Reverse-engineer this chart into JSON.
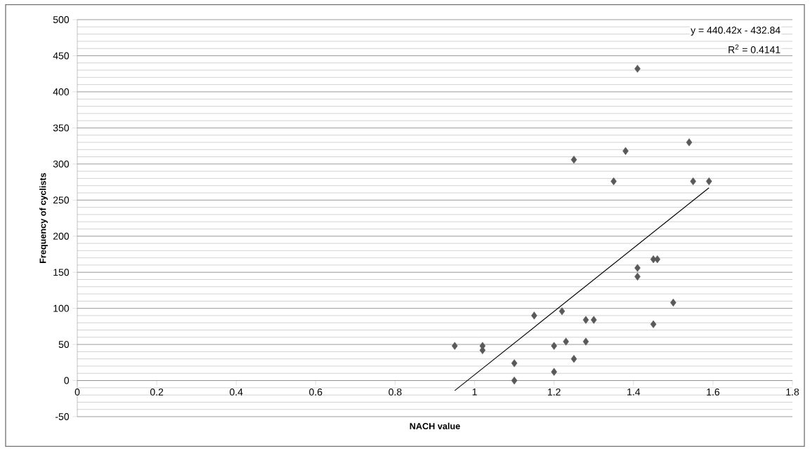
{
  "chart_data": {
    "type": "scatter",
    "xlabel": "NACH value",
    "ylabel": "Frequency of cyclists",
    "xlim": [
      0,
      1.8
    ],
    "xticks": [
      0,
      0.2,
      0.4,
      0.6,
      0.8,
      1,
      1.2,
      1.4,
      1.6,
      1.8
    ],
    "ylim": [
      -50,
      500
    ],
    "yticks": [
      -50,
      0,
      50,
      100,
      150,
      200,
      250,
      300,
      350,
      400,
      450,
      500
    ],
    "grid": "y",
    "series": [
      {
        "type": "scatter",
        "color": "#595959",
        "marker": "diamond",
        "x": [
          0.95,
          1.02,
          1.02,
          1.1,
          1.1,
          1.15,
          1.2,
          1.2,
          1.22,
          1.23,
          1.25,
          1.25,
          1.28,
          1.28,
          1.3,
          1.35,
          1.38,
          1.41,
          1.41,
          1.41,
          1.45,
          1.45,
          1.46,
          1.5,
          1.54,
          1.55,
          1.59
        ],
        "values": [
          48,
          48,
          42,
          24,
          0,
          90,
          48,
          12,
          96,
          54,
          30,
          306,
          84,
          54,
          84,
          276,
          318,
          432,
          156,
          144,
          168,
          78,
          168,
          108,
          330,
          276,
          276
        ]
      },
      {
        "type": "line",
        "color": "#000000",
        "marker": "none",
        "line_style": "solid",
        "x": [
          0.95,
          1.59
        ],
        "values": [
          -14,
          267
        ]
      }
    ],
    "annotations": [
      "y = 440.42x - 432.84",
      "R$^{2}$ = 0.4141"
    ]
  }
}
